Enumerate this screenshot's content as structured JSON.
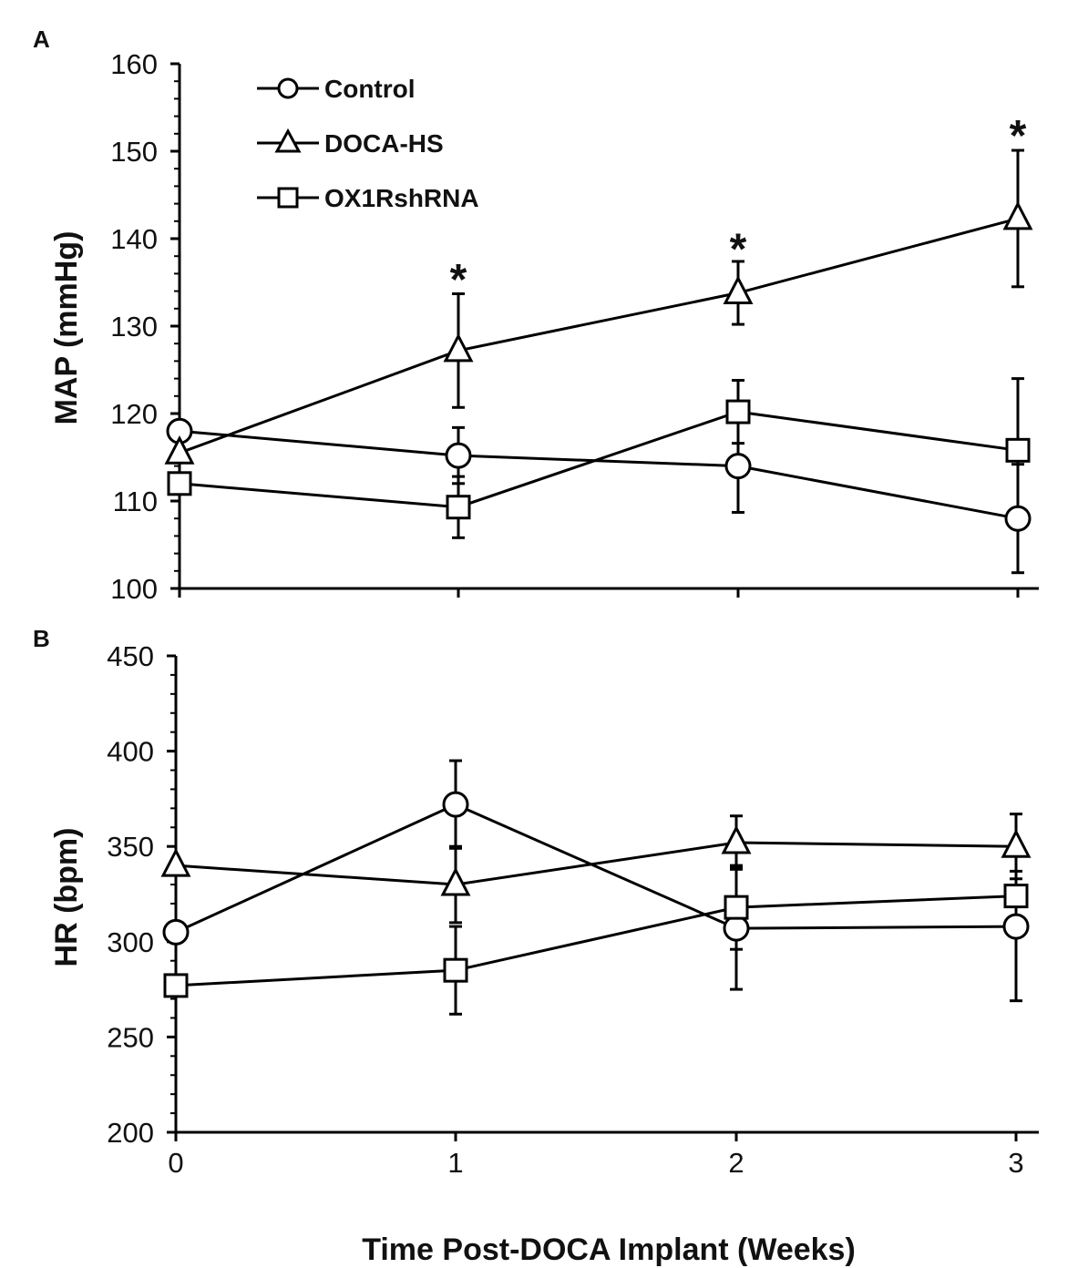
{
  "chart_data": [
    {
      "type": "line",
      "panel_label": "A",
      "ylabel": "MAP (mmHg)",
      "xlabel": "",
      "x": [
        0,
        1,
        2,
        3
      ],
      "xlim": [
        0,
        3
      ],
      "ylim": [
        100,
        160
      ],
      "yticks": [
        100,
        110,
        120,
        130,
        140,
        150,
        160
      ],
      "legend": {
        "placement": "top-left",
        "entries": [
          {
            "name": "Control",
            "marker": "circle"
          },
          {
            "name": "DOCA-HS",
            "marker": "triangle"
          },
          {
            "name": "OX1RshRNA",
            "marker": "square"
          }
        ]
      },
      "series": [
        {
          "name": "Control",
          "marker": "circle",
          "values": [
            118,
            115.2,
            114,
            108
          ],
          "errors": [
            0,
            3.2,
            5.3,
            6.2
          ]
        },
        {
          "name": "DOCA-HS",
          "marker": "triangle",
          "values": [
            115.5,
            127.2,
            133.8,
            142.3
          ],
          "errors": [
            0,
            6.5,
            3.6,
            7.8
          ]
        },
        {
          "name": "OX1RshRNA",
          "marker": "square",
          "values": [
            112,
            109.3,
            120.2,
            115.8
          ],
          "errors": [
            0,
            3.5,
            3.6,
            8.2
          ]
        }
      ],
      "annotations": [
        {
          "text": "*",
          "x": 1,
          "y": 135.5
        },
        {
          "text": "*",
          "x": 2,
          "y": 139
        },
        {
          "text": "*",
          "x": 3,
          "y": 152
        }
      ]
    },
    {
      "type": "line",
      "panel_label": "B",
      "ylabel": "HR (bpm)",
      "xlabel": "Time Post-DOCA Implant (Weeks)",
      "x": [
        0,
        1,
        2,
        3
      ],
      "xticks": [
        "0",
        "1",
        "2",
        "3"
      ],
      "xlim": [
        0,
        3
      ],
      "ylim": [
        200,
        450
      ],
      "yticks": [
        200,
        250,
        300,
        350,
        400,
        450
      ],
      "series": [
        {
          "name": "Control",
          "marker": "circle",
          "values": [
            305,
            372,
            307,
            308
          ],
          "errors": [
            0,
            23,
            32,
            39
          ]
        },
        {
          "name": "DOCA-HS",
          "marker": "triangle",
          "values": [
            340,
            330,
            352,
            350
          ],
          "errors": [
            0,
            20,
            14,
            17
          ]
        },
        {
          "name": "OX1RshRNA",
          "marker": "square",
          "values": [
            277,
            285,
            318,
            324
          ],
          "errors": [
            0,
            23,
            22,
            13
          ]
        }
      ]
    }
  ]
}
